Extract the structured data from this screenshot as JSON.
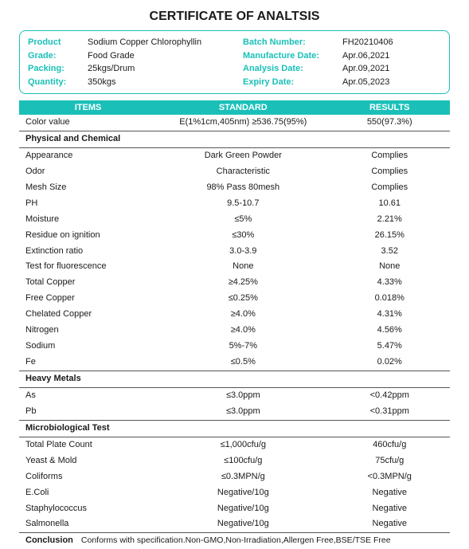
{
  "title": "CERTIFICATE OF ANALTSIS",
  "colors": {
    "accent": "#1ac0b8",
    "text": "#1a1a1a",
    "border": "#555555"
  },
  "info": {
    "left": [
      {
        "label": "Product",
        "value": "Sodium Copper Chlorophyllin"
      },
      {
        "label": "Grade:",
        "value": "Food Grade"
      },
      {
        "label": "Packing:",
        "value": "25kgs/Drum"
      },
      {
        "label": "Quantity:",
        "value": "350kgs"
      }
    ],
    "right": [
      {
        "label": "Batch Number:",
        "value": "FH20210406"
      },
      {
        "label": "Manufacture Date:",
        "value": "Apr.06,2021"
      },
      {
        "label": "Analysis Date:",
        "value": "Apr.09,2021"
      },
      {
        "label": "Expiry Date:",
        "value": "Apr.05,2023"
      }
    ]
  },
  "table": {
    "headers": [
      "ITEMS",
      "STANDARD",
      "RESULTS"
    ],
    "first_row": {
      "item": "Color value",
      "standard": "E(1%1cm,405nm) ≥536.75(95%)",
      "result": "550(97.3%)"
    },
    "sections": [
      {
        "title": "Physical and Chemical",
        "rows": [
          {
            "item": "Appearance",
            "standard": "Dark Green Powder",
            "result": "Complies"
          },
          {
            "item": "Odor",
            "standard": "Characteristic",
            "result": "Complies"
          },
          {
            "item": "Mesh Size",
            "standard": "98% Pass 80mesh",
            "result": "Complies"
          },
          {
            "item": "PH",
            "standard": "9.5-10.7",
            "result": "10.61"
          },
          {
            "item": "Moisture",
            "standard": "≤5%",
            "result": "2.21%"
          },
          {
            "item": "Residue on ignition",
            "standard": "≤30%",
            "result": "26.15%"
          },
          {
            "item": "Extinction ratio",
            "standard": "3.0-3.9",
            "result": "3.52"
          },
          {
            "item": "Test for fluorescence",
            "standard": "None",
            "result": "None"
          },
          {
            "item": "Total Copper",
            "standard": "≥4.25%",
            "result": "4.33%"
          },
          {
            "item": "Free Copper",
            "standard": "≤0.25%",
            "result": "0.018%"
          },
          {
            "item": "Chelated Copper",
            "standard": "≥4.0%",
            "result": "4.31%"
          },
          {
            "item": "Nitrogen",
            "standard": "≥4.0%",
            "result": "4.56%"
          },
          {
            "item": "Sodium",
            "standard": "5%-7%",
            "result": "5.47%"
          },
          {
            "item": "Fe",
            "standard": "≤0.5%",
            "result": "0.02%"
          }
        ]
      },
      {
        "title": "Heavy Metals",
        "rows": [
          {
            "item": "As",
            "standard": "≤3.0ppm",
            "result": "<0.42ppm"
          },
          {
            "item": "Pb",
            "standard": "≤3.0ppm",
            "result": "<0.31ppm"
          }
        ]
      },
      {
        "title": "Microbiological Test",
        "rows": [
          {
            "item": "Total Plate Count",
            "standard": "≤1,000cfu/g",
            "result": "460cfu/g"
          },
          {
            "item": "Yeast & Mold",
            "standard": "≤100cfu/g",
            "result": "75cfu/g"
          },
          {
            "item": "Coliforms",
            "standard": "≤0.3MPN/g",
            "result": "<0.3MPN/g"
          },
          {
            "item": "E.Coli",
            "standard": "Negative/10g",
            "result": "Negative"
          },
          {
            "item": "Staphylococcus",
            "standard": "Negative/10g",
            "result": "Negative"
          },
          {
            "item": "Salmonella",
            "standard": "Negative/10g",
            "result": "Negative"
          }
        ]
      }
    ],
    "conclusion": {
      "label": "Conclusion",
      "text": "Conforms with specification.Non-GMO,Non-Irradiation,Allergen Free,BSE/TSE Free"
    }
  }
}
